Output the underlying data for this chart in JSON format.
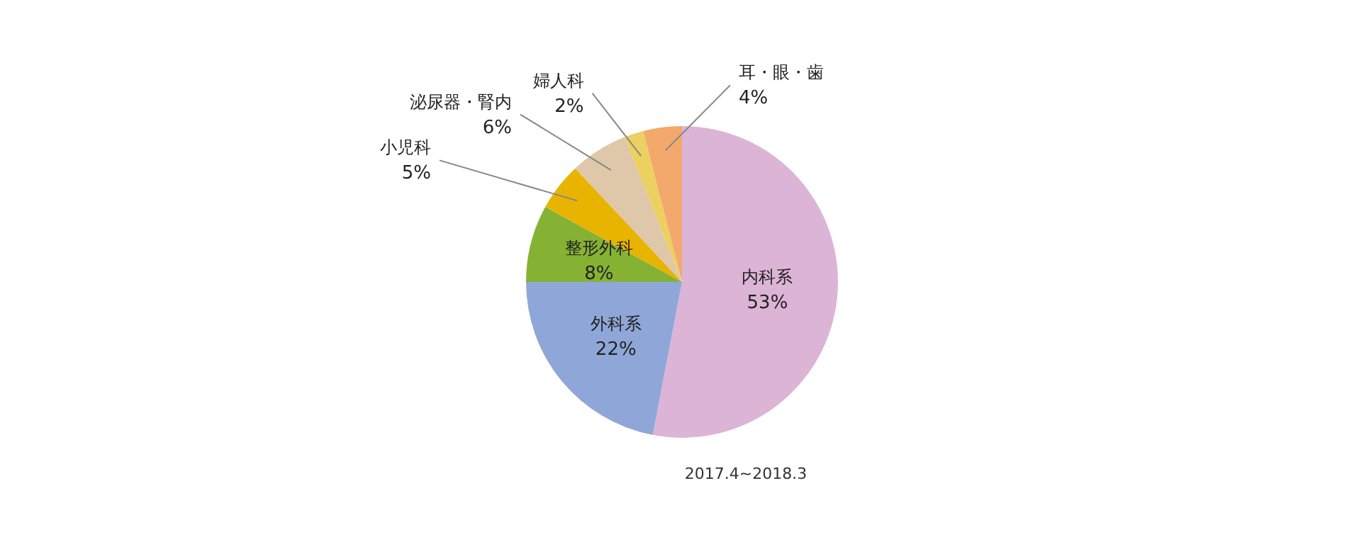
{
  "chart_data": {
    "type": "pie",
    "categories": [
      "内科系",
      "外科系",
      "整形外科",
      "小児科",
      "泌尿器・腎内",
      "婦人科",
      "耳・眼・歯"
    ],
    "values": [
      53,
      22,
      8,
      5,
      6,
      2,
      4
    ],
    "value_labels": [
      "53%",
      "22%",
      "8%",
      "5%",
      "6%",
      "2%",
      "4%"
    ],
    "colors": [
      "#dcb4d6",
      "#8fa7d8",
      "#86b234",
      "#e8b400",
      "#dfc7aa",
      "#ecd060",
      "#f2a96b"
    ],
    "data_labels": true,
    "annotations": [
      "2017.4~2018.3"
    ]
  }
}
